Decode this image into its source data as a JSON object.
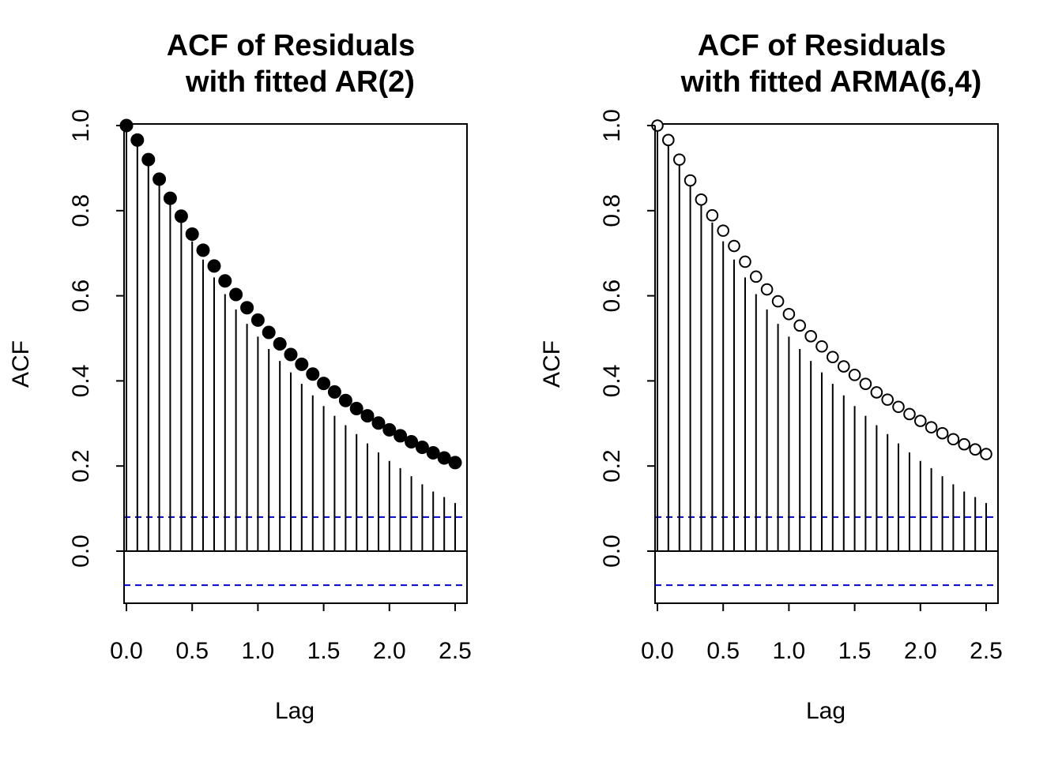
{
  "chart_data": [
    {
      "type": "scatter",
      "title_line1": "ACF of Residuals",
      "title_line2": "with fitted AR(2)",
      "xlabel": "Lag",
      "ylabel": "ACF",
      "xlim": [
        0,
        2.5
      ],
      "ylim": [
        -0.12,
        1.0
      ],
      "x_ticks": [
        "0.0",
        "0.5",
        "1.0",
        "1.5",
        "2.0",
        "2.5"
      ],
      "y_ticks": [
        "0.0",
        "0.2",
        "0.4",
        "0.6",
        "0.8",
        "1.0"
      ],
      "marker": "filled",
      "conf_bound": 0.08,
      "conf_color": "#0000cc",
      "lag": [
        0.0,
        0.083,
        0.167,
        0.25,
        0.333,
        0.417,
        0.5,
        0.583,
        0.667,
        0.75,
        0.833,
        0.917,
        1.0,
        1.083,
        1.167,
        1.25,
        1.333,
        1.417,
        1.5,
        1.583,
        1.667,
        1.75,
        1.833,
        1.917,
        2.0,
        2.083,
        2.167,
        2.25,
        2.333,
        2.417,
        2.5
      ],
      "acf": [
        1.0,
        0.958,
        0.911,
        0.864,
        0.817,
        0.772,
        0.728,
        0.685,
        0.643,
        0.604,
        0.568,
        0.534,
        0.504,
        0.475,
        0.447,
        0.42,
        0.393,
        0.366,
        0.341,
        0.318,
        0.296,
        0.275,
        0.253,
        0.232,
        0.212,
        0.195,
        0.176,
        0.157,
        0.14,
        0.127,
        0.113
      ],
      "model_fit": [
        1.0,
        0.966,
        0.92,
        0.874,
        0.829,
        0.787,
        0.745,
        0.707,
        0.67,
        0.635,
        0.603,
        0.572,
        0.543,
        0.514,
        0.487,
        0.462,
        0.439,
        0.416,
        0.394,
        0.374,
        0.354,
        0.335,
        0.318,
        0.301,
        0.285,
        0.271,
        0.257,
        0.244,
        0.231,
        0.219,
        0.208
      ]
    },
    {
      "type": "scatter",
      "title_line1": "ACF of Residuals",
      "title_line2": "with fitted ARMA(6,4)",
      "xlabel": "Lag",
      "ylabel": "ACF",
      "xlim": [
        0,
        2.5
      ],
      "ylim": [
        -0.12,
        1.0
      ],
      "x_ticks": [
        "0.0",
        "0.5",
        "1.0",
        "1.5",
        "2.0",
        "2.5"
      ],
      "y_ticks": [
        "0.0",
        "0.2",
        "0.4",
        "0.6",
        "0.8",
        "1.0"
      ],
      "marker": "open",
      "conf_bound": 0.08,
      "conf_color": "#0000cc",
      "lag": [
        0.0,
        0.083,
        0.167,
        0.25,
        0.333,
        0.417,
        0.5,
        0.583,
        0.667,
        0.75,
        0.833,
        0.917,
        1.0,
        1.083,
        1.167,
        1.25,
        1.333,
        1.417,
        1.5,
        1.583,
        1.667,
        1.75,
        1.833,
        1.917,
        2.0,
        2.083,
        2.167,
        2.25,
        2.333,
        2.417,
        2.5
      ],
      "acf": [
        1.0,
        0.958,
        0.911,
        0.864,
        0.817,
        0.772,
        0.728,
        0.685,
        0.643,
        0.604,
        0.568,
        0.534,
        0.504,
        0.475,
        0.447,
        0.42,
        0.393,
        0.366,
        0.341,
        0.318,
        0.296,
        0.275,
        0.253,
        0.232,
        0.212,
        0.195,
        0.176,
        0.157,
        0.14,
        0.127,
        0.113
      ],
      "model_fit": [
        1.0,
        0.966,
        0.92,
        0.871,
        0.826,
        0.789,
        0.753,
        0.717,
        0.68,
        0.645,
        0.615,
        0.587,
        0.557,
        0.53,
        0.505,
        0.481,
        0.456,
        0.434,
        0.414,
        0.393,
        0.373,
        0.356,
        0.339,
        0.322,
        0.306,
        0.291,
        0.277,
        0.263,
        0.251,
        0.239,
        0.228
      ]
    }
  ]
}
